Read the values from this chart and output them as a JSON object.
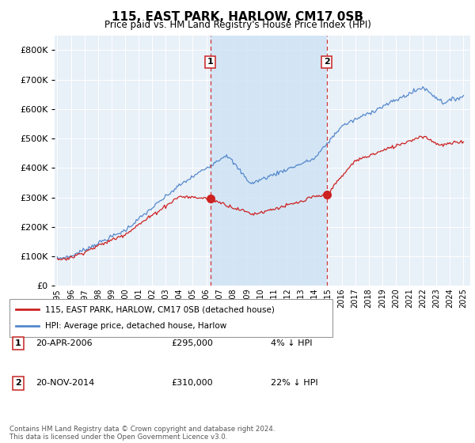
{
  "title": "115, EAST PARK, HARLOW, CM17 0SB",
  "subtitle": "Price paid vs. HM Land Registry's House Price Index (HPI)",
  "bg_color": "#e8f0f8",
  "shade_color": "#d0e4f5",
  "hpi_color": "#5588cc",
  "price_color": "#cc2222",
  "vline_color": "#cc3333",
  "sale1_year": 2006.3,
  "sale1_price": 295000,
  "sale2_year": 2014.9,
  "sale2_price": 310000,
  "ylim": [
    0,
    850000
  ],
  "yticks": [
    0,
    100000,
    200000,
    300000,
    400000,
    500000,
    600000,
    700000,
    800000
  ],
  "legend_label_price": "115, EAST PARK, HARLOW, CM17 0SB (detached house)",
  "legend_label_hpi": "HPI: Average price, detached house, Harlow",
  "annotation1_label": "1",
  "annotation1_date": "20-APR-2006",
  "annotation1_price": "£295,000",
  "annotation1_pct": "4% ↓ HPI",
  "annotation2_label": "2",
  "annotation2_date": "20-NOV-2014",
  "annotation2_price": "£310,000",
  "annotation2_pct": "22% ↓ HPI",
  "footer": "Contains HM Land Registry data © Crown copyright and database right 2024.\nThis data is licensed under the Open Government Licence v3.0.",
  "xlim_left": 1994.8,
  "xlim_right": 2025.5
}
